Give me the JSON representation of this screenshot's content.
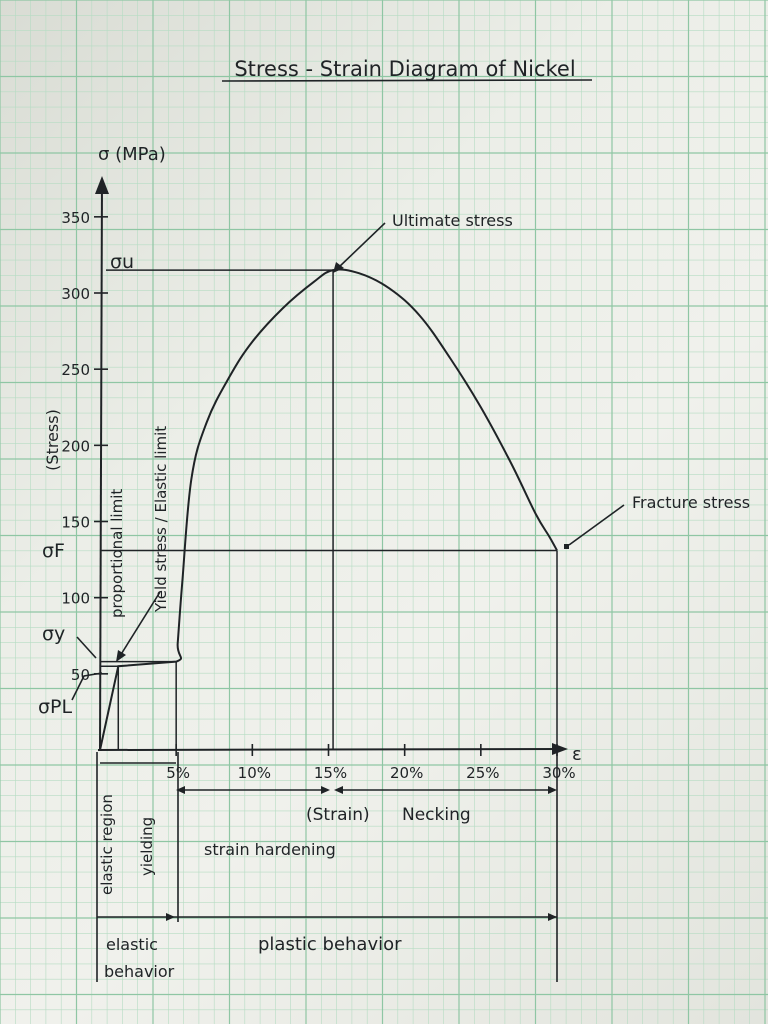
{
  "chart_data": {
    "type": "line",
    "title": "Stress - Strain Diagram of Nickel",
    "ylabel": "σ (MPa)",
    "ylabel_side": "(Stress)",
    "xlabel": "ε",
    "xlim": [
      0,
      30
    ],
    "ylim": [
      0,
      370
    ],
    "x_ticks": [
      5,
      10,
      15,
      20,
      25,
      30
    ],
    "x_tick_labels": [
      "5%",
      "10%",
      "15%",
      "20%",
      "25%",
      "30%"
    ],
    "y_ticks": [
      50,
      100,
      150,
      200,
      250,
      300,
      350
    ],
    "y_tick_labels": [
      "50",
      "100",
      "150",
      "200",
      "250",
      "300",
      "350"
    ],
    "grid": true,
    "curve": {
      "x": [
        0,
        1.2,
        5,
        5.1,
        5.4,
        6,
        7,
        8.5,
        10,
        12,
        14,
        15.3,
        17,
        19,
        21,
        23,
        25,
        27,
        28.6,
        29.5,
        30
      ],
      "y": [
        0,
        55,
        58,
        70,
        110,
        178,
        215,
        245,
        268,
        290,
        307,
        315,
        313,
        303,
        285,
        257,
        225,
        188,
        155,
        140,
        131
      ]
    },
    "levels": [
      {
        "symbol": "σu",
        "value": 315,
        "x_end": 15.3
      },
      {
        "symbol": "σF",
        "value": 131,
        "x_end": 30
      },
      {
        "symbol": "σy",
        "value": 58,
        "x_end": 5
      },
      {
        "symbol": "σPL",
        "value": 55,
        "x_end": 1.2
      }
    ],
    "annotations": {
      "ultimate": "Ultimate stress",
      "fracture": "Fracture stress",
      "proportional": "proportional limit",
      "yield": "Yield stress / Elastic limit",
      "strain": "(Strain)",
      "necking": "Necking",
      "strain_hardening": "strain hardening",
      "elastic_region": "elastic region",
      "yielding": "yielding",
      "elastic_behavior_1": "elastic",
      "elastic_behavior_2": "behavior",
      "plastic_behavior": "plastic behavior"
    }
  }
}
